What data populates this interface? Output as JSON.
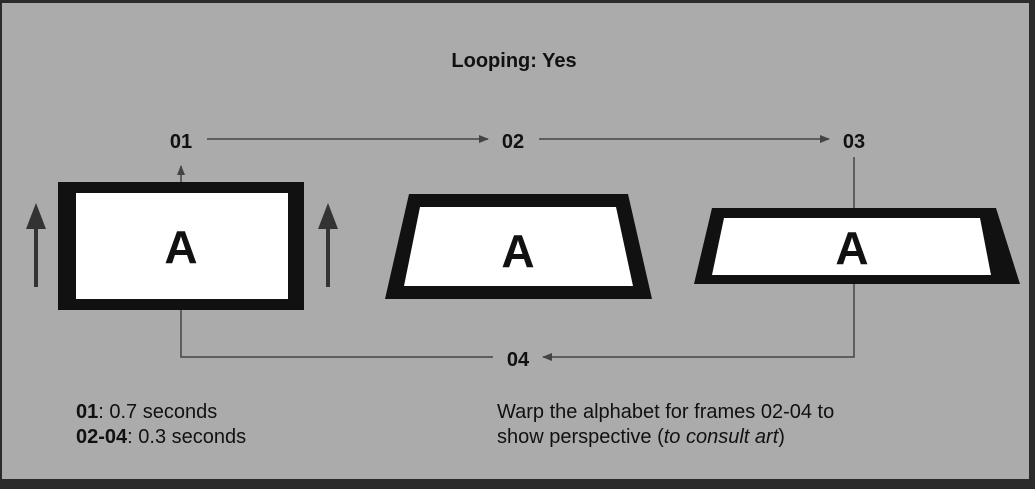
{
  "title": "Looping: Yes",
  "frames": [
    {
      "id": "01",
      "letter": "A"
    },
    {
      "id": "02",
      "letter": "A"
    },
    {
      "id": "03",
      "letter": "A"
    },
    {
      "id": "04"
    }
  ],
  "timing": [
    {
      "key": "01",
      "text": ": 0.7 seconds"
    },
    {
      "key": "02-04",
      "text": ": 0.3 seconds"
    }
  ],
  "instruction": {
    "line1": "Warp the alphabet for frames 02-04 to",
    "line2_prefix": "show perspective (",
    "line2_italic": "to consult art",
    "line2_suffix": ")"
  },
  "colors": {
    "background": "#ababab",
    "ink": "#111111",
    "frame_fill": "#ffffff",
    "connector": "#444444"
  }
}
